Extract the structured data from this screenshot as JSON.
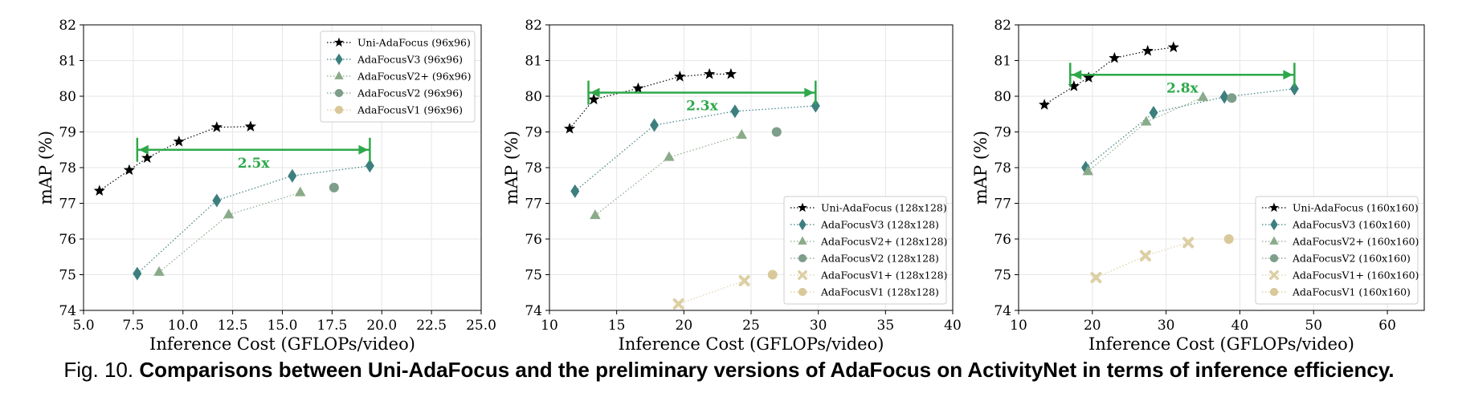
{
  "figure": {
    "caption_prefix": "Fig. 10.",
    "caption_text": "Comparisons between Uni-AdaFocus and the preliminary versions of AdaFocus on ActivityNet in terms of inference efficiency."
  },
  "colors": {
    "uni": "#000000",
    "v3": "#3d7f7f",
    "v2plus": "#8aab8a",
    "v2": "#7d9e8a",
    "v1plus": "#ddcfa5",
    "v1": "#d9c99a",
    "annotation": "#2ea84a"
  },
  "chart_data": [
    {
      "type": "line",
      "title": "",
      "xlabel": "Inference Cost (GFLOPs/video)",
      "ylabel": "mAP (%)",
      "xlim": [
        5.0,
        25.0
      ],
      "ylim": [
        74,
        82
      ],
      "xticks": [
        5.0,
        7.5,
        10.0,
        12.5,
        15.0,
        17.5,
        20.0,
        22.5,
        25.0
      ],
      "xtick_labels": [
        "5.0",
        "7.5",
        "10.0",
        "12.5",
        "15.0",
        "17.5",
        "20.0",
        "22.5",
        "25.0"
      ],
      "yticks": [
        74,
        75,
        76,
        77,
        78,
        79,
        80,
        81,
        82
      ],
      "legend_position": "top-right",
      "grid": true,
      "series": [
        {
          "name": "Uni-AdaFocus (96x96)",
          "marker": "star",
          "color_key": "uni",
          "x": [
            5.8,
            7.3,
            8.2,
            9.8,
            11.7,
            13.4
          ],
          "y": [
            77.35,
            77.93,
            78.27,
            78.73,
            79.13,
            79.15
          ]
        },
        {
          "name": "AdaFocusV3 (96x96)",
          "marker": "diamond",
          "color_key": "v3",
          "x": [
            7.7,
            11.7,
            15.5,
            19.4
          ],
          "y": [
            75.03,
            77.08,
            77.77,
            78.05
          ]
        },
        {
          "name": "AdaFocusV2+ (96x96)",
          "marker": "triangle",
          "color_key": "v2plus",
          "x": [
            8.8,
            12.3,
            15.9
          ],
          "y": [
            75.07,
            76.68,
            77.3
          ]
        },
        {
          "name": "AdaFocusV2 (96x96)",
          "marker": "circle",
          "color_key": "v2",
          "x": [
            17.6
          ],
          "y": [
            77.44
          ]
        },
        {
          "name": "AdaFocusV1 (96x96)",
          "marker": "circle",
          "color_key": "v1",
          "x": [],
          "y": []
        }
      ],
      "annotation": {
        "label": "2.5x",
        "x_from": 7.7,
        "x_to": 19.4,
        "y": 78.5
      }
    },
    {
      "type": "line",
      "title": "",
      "xlabel": "Inference Cost (GFLOPs/video)",
      "ylabel": "mAP (%)",
      "xlim": [
        10,
        40
      ],
      "ylim": [
        74,
        82
      ],
      "xticks": [
        10,
        15,
        20,
        25,
        30,
        35,
        40
      ],
      "xtick_labels": [
        "10",
        "15",
        "20",
        "25",
        "30",
        "35",
        "40"
      ],
      "yticks": [
        74,
        75,
        76,
        77,
        78,
        79,
        80,
        81,
        82
      ],
      "legend_position": "bottom-right",
      "grid": true,
      "series": [
        {
          "name": "Uni-AdaFocus (128x128)",
          "marker": "star",
          "color_key": "uni",
          "x": [
            11.5,
            13.3,
            16.6,
            19.7,
            21.9,
            23.5
          ],
          "y": [
            79.09,
            79.91,
            80.22,
            80.55,
            80.62,
            80.62
          ]
        },
        {
          "name": "AdaFocusV3 (128x128)",
          "marker": "diamond",
          "color_key": "v3",
          "x": [
            11.9,
            17.8,
            23.8,
            29.8
          ],
          "y": [
            77.34,
            79.19,
            79.58,
            79.73
          ]
        },
        {
          "name": "AdaFocusV2+ (128x128)",
          "marker": "triangle",
          "color_key": "v2plus",
          "x": [
            13.4,
            18.9,
            24.3
          ],
          "y": [
            76.66,
            78.29,
            78.91
          ]
        },
        {
          "name": "AdaFocusV2 (128x128)",
          "marker": "circle",
          "color_key": "v2",
          "x": [
            26.9
          ],
          "y": [
            79.0
          ]
        },
        {
          "name": "AdaFocusV1+ (128x128)",
          "marker": "x",
          "color_key": "v1plus",
          "x": [
            19.6,
            24.5
          ],
          "y": [
            74.18,
            74.83
          ]
        },
        {
          "name": "AdaFocusV1 (128x128)",
          "marker": "circle",
          "color_key": "v1",
          "x": [
            26.6
          ],
          "y": [
            75.0
          ]
        }
      ],
      "annotation": {
        "label": "2.3x",
        "x_from": 12.9,
        "x_to": 29.8,
        "y": 80.1
      }
    },
    {
      "type": "line",
      "title": "",
      "xlabel": "Inference Cost (GFLOPs/video)",
      "ylabel": "mAP (%)",
      "xlim": [
        10,
        65
      ],
      "ylim": [
        74,
        82
      ],
      "xticks": [
        10,
        20,
        30,
        40,
        50,
        60
      ],
      "xtick_labels": [
        "10",
        "20",
        "30",
        "40",
        "50",
        "60"
      ],
      "yticks": [
        74,
        75,
        76,
        77,
        78,
        79,
        80,
        81,
        82
      ],
      "legend_position": "bottom-right",
      "grid": true,
      "series": [
        {
          "name": "Uni-AdaFocus (160x160)",
          "marker": "star",
          "color_key": "uni",
          "x": [
            13.5,
            17.5,
            19.5,
            23.0,
            27.5,
            31.0
          ],
          "y": [
            79.76,
            80.28,
            80.52,
            81.07,
            81.27,
            81.37
          ]
        },
        {
          "name": "AdaFocusV3 (160x160)",
          "marker": "diamond",
          "color_key": "v3",
          "x": [
            19.1,
            28.3,
            37.9,
            47.4
          ],
          "y": [
            78.0,
            79.54,
            79.98,
            80.21
          ]
        },
        {
          "name": "AdaFocusV2+ (160x160)",
          "marker": "triangle",
          "color_key": "v2plus",
          "x": [
            19.4,
            27.3,
            35.0
          ],
          "y": [
            77.89,
            79.28,
            79.97
          ]
        },
        {
          "name": "AdaFocusV2 (160x160)",
          "marker": "circle",
          "color_key": "v2",
          "x": [
            38.9
          ],
          "y": [
            79.95
          ]
        },
        {
          "name": "AdaFocusV1+ (160x160)",
          "marker": "x",
          "color_key": "v1plus",
          "x": [
            20.5,
            27.2,
            33.0
          ],
          "y": [
            74.92,
            75.53,
            75.9
          ]
        },
        {
          "name": "AdaFocusV1 (160x160)",
          "marker": "circle",
          "color_key": "v1",
          "x": [
            38.5
          ],
          "y": [
            76.0
          ]
        }
      ],
      "annotation": {
        "label": "2.8x",
        "x_from": 17.0,
        "x_to": 47.4,
        "y": 80.6
      }
    }
  ]
}
